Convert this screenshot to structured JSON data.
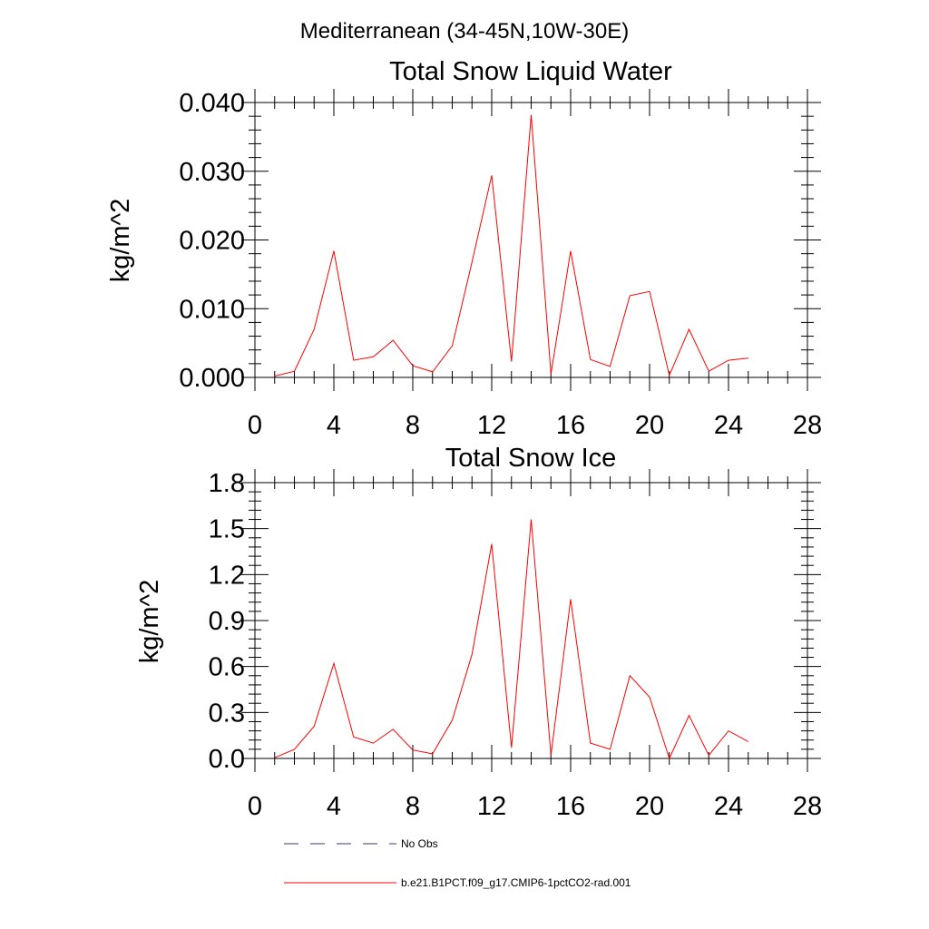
{
  "figure": {
    "suptitle": "Mediterranean (34-45N,10W-30E)"
  },
  "chart_data": [
    {
      "type": "line",
      "title": "Total Snow Liquid Water",
      "xlabel": "",
      "ylabel": "kg/m^2",
      "xlim": [
        0,
        28
      ],
      "ylim": [
        0,
        0.04
      ],
      "x_ticks": [
        0,
        4,
        8,
        12,
        16,
        20,
        24,
        28
      ],
      "x_tick_labels": [
        "0",
        "4",
        "8",
        "12",
        "16",
        "20",
        "24",
        "28"
      ],
      "y_ticks": [
        0,
        0.01,
        0.02,
        0.03,
        0.04
      ],
      "y_tick_labels": [
        "0.000",
        "0.010",
        "0.020",
        "0.030",
        "0.040"
      ],
      "grid": false,
      "series": [
        {
          "name": "b.e21.B1PCT.f09_g17.CMIP6-1pctCO2-rad.001",
          "color": "#ff0000",
          "x": [
            1,
            2,
            3,
            4,
            5,
            6,
            7,
            8,
            9,
            10,
            11,
            12,
            13,
            14,
            15,
            16,
            17,
            18,
            19,
            20,
            21,
            22,
            23,
            24,
            25
          ],
          "values": [
            0.0002,
            0.0009,
            0.007,
            0.0184,
            0.0025,
            0.003,
            0.0054,
            0.0017,
            0.0008,
            0.0046,
            0.0168,
            0.0294,
            0.0023,
            0.0382,
            0.0005,
            0.0184,
            0.0026,
            0.0016,
            0.0119,
            0.0125,
            0.0003,
            0.007,
            0.0009,
            0.0025,
            0.0028
          ]
        }
      ]
    },
    {
      "type": "line",
      "title": "Total Snow Ice",
      "xlabel": "",
      "ylabel": "kg/m^2",
      "xlim": [
        0,
        28
      ],
      "ylim": [
        0,
        1.8
      ],
      "x_ticks": [
        0,
        4,
        8,
        12,
        16,
        20,
        24,
        28
      ],
      "x_tick_labels": [
        "0",
        "4",
        "8",
        "12",
        "16",
        "20",
        "24",
        "28"
      ],
      "y_ticks": [
        0,
        0.3,
        0.6,
        0.9,
        1.2,
        1.5,
        1.8
      ],
      "y_tick_labels": [
        "0.0",
        "0.3",
        "0.6",
        "0.9",
        "1.2",
        "1.5",
        "1.8"
      ],
      "grid": false,
      "series": [
        {
          "name": "b.e21.B1PCT.f09_g17.CMIP6-1pctCO2-rad.001",
          "color": "#ff0000",
          "x": [
            1,
            2,
            3,
            4,
            5,
            6,
            7,
            8,
            9,
            10,
            11,
            12,
            13,
            14,
            15,
            16,
            17,
            18,
            19,
            20,
            21,
            22,
            23,
            24,
            25
          ],
          "values": [
            0.005,
            0.06,
            0.21,
            0.62,
            0.14,
            0.1,
            0.19,
            0.055,
            0.03,
            0.25,
            0.68,
            1.4,
            0.07,
            1.56,
            0.02,
            1.04,
            0.1,
            0.06,
            0.54,
            0.4,
            0.0,
            0.28,
            0.02,
            0.18,
            0.11
          ]
        }
      ]
    }
  ],
  "legend": {
    "placement": "bottom",
    "entries": [
      {
        "label": "No Obs",
        "color": "#3a3a6e",
        "style": "dashed"
      },
      {
        "label": "b.e21.B1PCT.f09_g17.CMIP6-1pctCO2-rad.001",
        "color": "#ff0000",
        "style": "solid"
      }
    ]
  }
}
